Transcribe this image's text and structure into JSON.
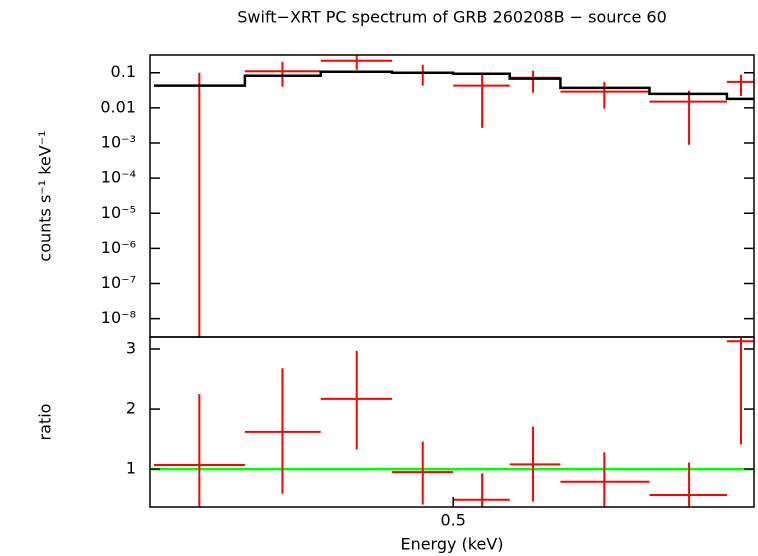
{
  "chart_data": [
    {
      "type": "spectrum",
      "title": "Swift−XRT PC spectrum of GRB 260208B − source 60",
      "ylabel": "counts s⁻¹ keV⁻¹",
      "xlog": true,
      "ylog": true,
      "xlim": [
        0.3,
        0.83
      ],
      "ylim": [
        3e-09,
        0.32
      ],
      "yticks": [
        {
          "value": 0.1,
          "label": "0.1"
        },
        {
          "value": 0.01,
          "label": "0.01"
        },
        {
          "value": 0.001,
          "label": "10⁻³"
        },
        {
          "value": 0.0001,
          "label": "10⁻⁴"
        },
        {
          "value": 1e-05,
          "label": "10⁻⁵"
        },
        {
          "value": 1e-06,
          "label": "10⁻⁶"
        },
        {
          "value": 1e-07,
          "label": "10⁻⁷"
        },
        {
          "value": 1e-08,
          "label": "10⁻⁸"
        }
      ],
      "series": [
        {
          "name": "data",
          "color": "#ff0000",
          "x": [
            0.326,
            0.375,
            0.425,
            0.475,
            0.525,
            0.572,
            0.645,
            0.744,
            0.812
          ],
          "x_low": [
            0.302,
            0.352,
            0.4,
            0.451,
            0.5,
            0.55,
            0.599,
            0.696,
            0.793
          ],
          "x_high": [
            0.352,
            0.4,
            0.451,
            0.5,
            0.55,
            0.599,
            0.696,
            0.793,
            0.83
          ],
          "values": [
            0.043,
            0.11,
            0.22,
            0.1,
            0.043,
            0.072,
            0.029,
            0.015,
            0.055
          ],
          "y_low": [
            1e-10,
            0.04,
            0.122,
            0.043,
            0.0027,
            0.027,
            0.0094,
            0.00089,
            0.022
          ],
          "y_high": [
            0.1,
            0.206,
            0.326,
            0.169,
            0.1,
            0.114,
            0.055,
            0.031,
            0.088
          ]
        },
        {
          "name": "model",
          "color": "#000000",
          "x_low": [
            0.302,
            0.352,
            0.4,
            0.451,
            0.5,
            0.55,
            0.599,
            0.696,
            0.793
          ],
          "x_high": [
            0.352,
            0.4,
            0.451,
            0.5,
            0.55,
            0.599,
            0.696,
            0.793,
            0.83
          ],
          "values": [
            0.043,
            0.082,
            0.107,
            0.1,
            0.094,
            0.068,
            0.037,
            0.025,
            0.018
          ]
        }
      ]
    },
    {
      "type": "ratio",
      "xlabel": "Energy (keV)",
      "ylabel": "ratio",
      "xlog": true,
      "xlim": [
        0.3,
        0.83
      ],
      "ylim": [
        0.37,
        3.2
      ],
      "xticks": [
        0.5
      ],
      "yticks": [
        1,
        2,
        3
      ],
      "reference": 1,
      "reference_color": "#00ff00",
      "series": [
        {
          "name": "ratio",
          "color": "#ff0000",
          "x": [
            0.326,
            0.375,
            0.425,
            0.475,
            0.525,
            0.572,
            0.645,
            0.744,
            0.812
          ],
          "x_low": [
            0.302,
            0.352,
            0.4,
            0.451,
            0.5,
            0.55,
            0.599,
            0.696,
            0.793
          ],
          "x_high": [
            0.352,
            0.4,
            0.451,
            0.5,
            0.55,
            0.599,
            0.696,
            0.793,
            0.83
          ],
          "values": [
            1.07,
            1.62,
            2.17,
            0.95,
            0.49,
            1.08,
            0.79,
            0.57,
            3.13
          ],
          "y_low": [
            0.3,
            0.59,
            1.33,
            0.41,
            0.3,
            0.46,
            0.35,
            0.3,
            1.41
          ],
          "y_high": [
            2.25,
            2.68,
            2.97,
            1.46,
            0.93,
            1.71,
            1.28,
            1.11,
            3.5
          ]
        }
      ]
    }
  ]
}
